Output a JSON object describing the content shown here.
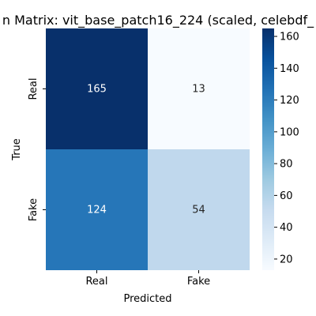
{
  "chart_data": {
    "type": "heatmap",
    "title": "n Matrix: vit_base_patch16_224 (scaled, celebdf_",
    "xlabel": "Predicted",
    "ylabel": "True",
    "x_categories": [
      "Real",
      "Fake"
    ],
    "y_categories": [
      "Real",
      "Fake"
    ],
    "values": [
      [
        165,
        13
      ],
      [
        124,
        54
      ]
    ],
    "colormap": "Blues",
    "vmin": 13,
    "vmax": 165,
    "colorbar_ticks": [
      20,
      40,
      60,
      80,
      100,
      120,
      140,
      160
    ]
  }
}
